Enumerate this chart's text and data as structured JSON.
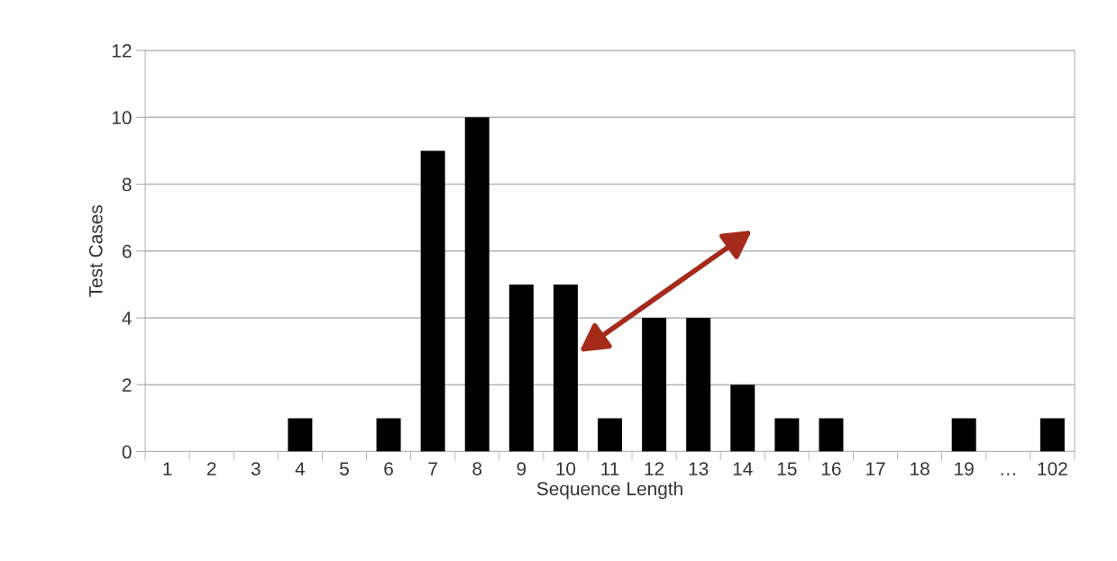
{
  "chart_data": {
    "type": "bar",
    "xlabel": "Sequence Length",
    "ylabel": "Test Cases",
    "categories": [
      "1",
      "2",
      "3",
      "4",
      "5",
      "6",
      "7",
      "8",
      "9",
      "10",
      "11",
      "12",
      "13",
      "14",
      "15",
      "16",
      "17",
      "18",
      "19",
      "…",
      "102"
    ],
    "values": [
      0,
      0,
      0,
      1,
      0,
      1,
      9,
      10,
      5,
      5,
      1,
      4,
      4,
      2,
      1,
      1,
      0,
      0,
      1,
      0,
      1
    ],
    "color": "#000000",
    "ylim": [
      0,
      12
    ],
    "yticks": [
      0,
      2,
      4,
      6,
      8,
      10,
      12
    ],
    "grid": "y",
    "legend": false
  }
}
